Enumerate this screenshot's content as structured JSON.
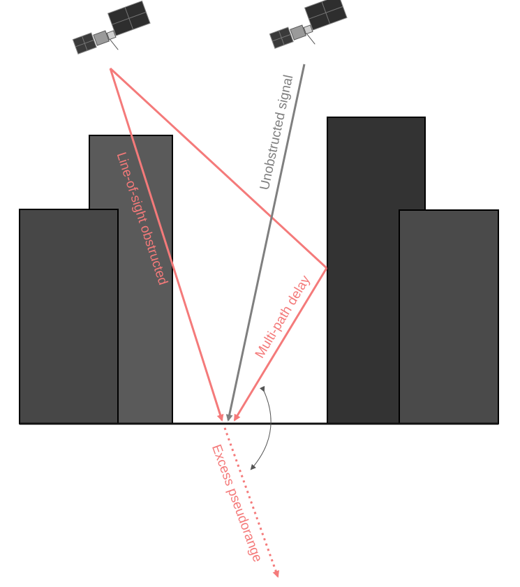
{
  "labels": {
    "line_of_sight": "Line-of-sight obstructed",
    "unobstructed": "Unobstructed signal",
    "multipath": "Multi-path delay",
    "excess": "Excess pseudorange"
  },
  "colors": {
    "signal_blocked": "#f47a7a",
    "signal_clear": "#7f7f7f",
    "building_dark": "#333333",
    "building_mid": "#4a4a4a",
    "building_light": "#5a5a5a",
    "ground": "#111111",
    "satellite_panel": "#3a3a3a"
  },
  "icons": {
    "satellite_left": "satellite-icon",
    "satellite_right": "satellite-icon"
  }
}
